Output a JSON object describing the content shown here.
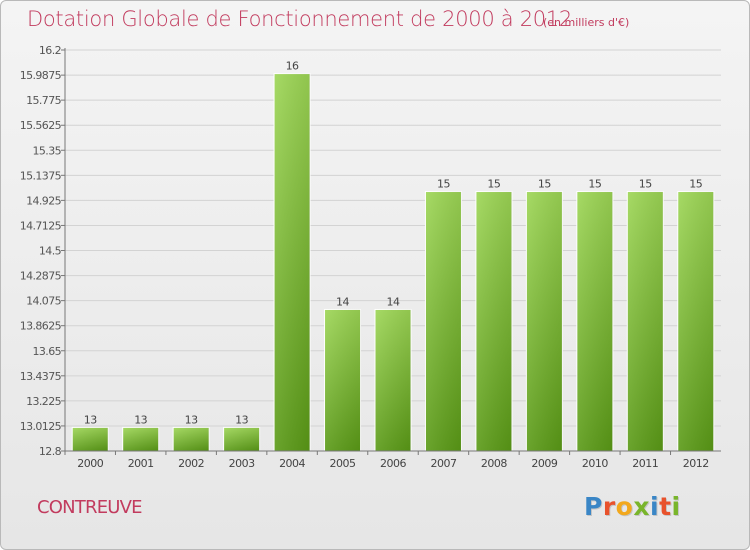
{
  "header": {
    "title": "Dotation Globale de Fonctionnement de 2000 à 2012",
    "subtitle": "(en milliers d'€)"
  },
  "footer": {
    "commune": "CONTREUVE",
    "logo_letters": [
      "P",
      "r",
      "o",
      "x",
      "i",
      "t",
      "i"
    ]
  },
  "colors": {
    "title": "#c23b5e",
    "bar_top": "#9dd655",
    "bar_bottom": "#5a9a16",
    "logo": [
      "#3a86c6",
      "#e8522c",
      "#f2a81d",
      "#79b52b",
      "#3a86c6",
      "#e8522c",
      "#79b52b"
    ]
  },
  "chart_data": {
    "type": "bar",
    "title": "Dotation Globale de Fonctionnement de 2000 à 2012",
    "xlabel": "",
    "ylabel": "",
    "grid": true,
    "legend": "none",
    "ylim": [
      12.8,
      16.2
    ],
    "yticks": [
      "16.2",
      "15.9875",
      "15.775",
      "15.5625",
      "15.35",
      "15.1375",
      "14.925",
      "14.7125",
      "14.5",
      "14.2875",
      "14.075",
      "13.8625",
      "13.65",
      "13.4375",
      "13.225",
      "13.0125",
      "12.8"
    ],
    "categories": [
      "2000",
      "2001",
      "2002",
      "2003",
      "2004",
      "2005",
      "2006",
      "2007",
      "2008",
      "2009",
      "2010",
      "2011",
      "2012"
    ],
    "values": [
      13,
      13,
      13,
      13,
      16,
      14,
      14,
      15,
      15,
      15,
      15,
      15,
      15
    ],
    "labels": [
      "13",
      "13",
      "13",
      "13",
      "16",
      "14",
      "14",
      "15",
      "15",
      "15",
      "15",
      "15",
      "15"
    ]
  }
}
